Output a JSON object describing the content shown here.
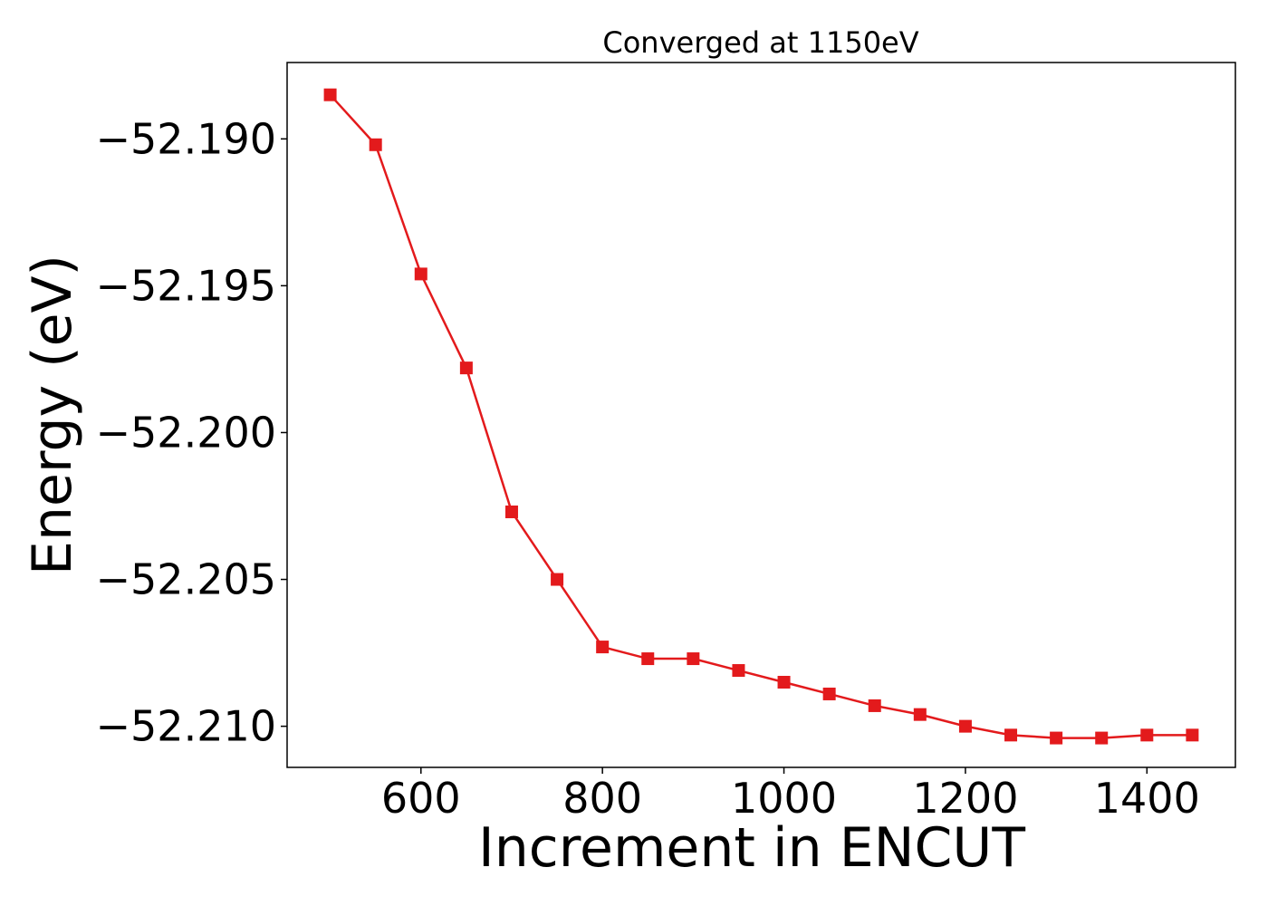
{
  "chart_data": {
    "type": "line",
    "title": "Converged at 1150eV",
    "xlabel": "Increment in ENCUT",
    "ylabel": "Energy (eV)",
    "xlim": [
      452.5,
      1497.5
    ],
    "ylim": [
      -52.2114,
      -52.1874
    ],
    "xticks": [
      600,
      800,
      1000,
      1200,
      1400
    ],
    "yticks": [
      -52.19,
      -52.195,
      -52.2,
      -52.205,
      -52.21
    ],
    "grid": false,
    "series": [
      {
        "color": "#e31a1c",
        "marker": "square",
        "x": [
          500,
          550,
          600,
          650,
          700,
          750,
          800,
          850,
          900,
          950,
          1000,
          1050,
          1100,
          1150,
          1200,
          1250,
          1300,
          1350,
          1400,
          1450
        ],
        "y": [
          -52.1885,
          -52.1902,
          -52.1946,
          -52.1978,
          -52.2027,
          -52.205,
          -52.2073,
          -52.2077,
          -52.2077,
          -52.2081,
          -52.2085,
          -52.2089,
          -52.2093,
          -52.2096,
          -52.21,
          -52.2103,
          -52.2104,
          -52.2104,
          -52.2103,
          -52.2103
        ]
      }
    ]
  }
}
